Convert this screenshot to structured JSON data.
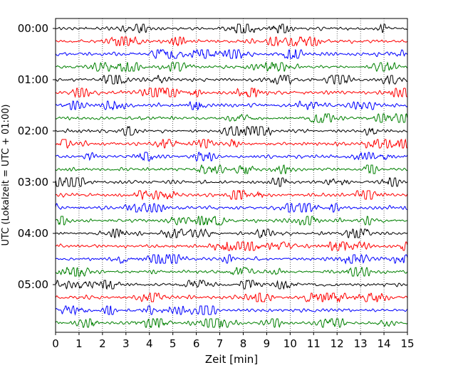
{
  "chart_data": {
    "type": "line",
    "title": "",
    "xlabel": "Zeit  [min]",
    "ylabel": "UTC (Lokalzeit = UTC + 01:00)",
    "xlim": [
      0,
      15
    ],
    "x_ticks": [
      "0",
      "1",
      "2",
      "3",
      "4",
      "5",
      "6",
      "7",
      "8",
      "9",
      "10",
      "11",
      "12",
      "13",
      "14",
      "15"
    ],
    "y_tick_labels": [
      "00:00",
      "01:00",
      "02:00",
      "03:00",
      "04:00",
      "05:00"
    ],
    "grid": "vertical-dotted",
    "trace_count": 24,
    "traces_per_hour": 4,
    "trace_colors": [
      "#000000",
      "#ff0000",
      "#0000ff",
      "#008000"
    ],
    "trace_start_labels": [
      "00:00",
      "00:15",
      "00:30",
      "00:45",
      "01:00",
      "01:15",
      "01:30",
      "01:45",
      "02:00",
      "02:15",
      "02:30",
      "02:45",
      "03:00",
      "03:15",
      "03:30",
      "03:45",
      "04:00",
      "04:15",
      "04:30",
      "04:45",
      "05:00",
      "05:15",
      "05:30",
      "05:45"
    ]
  }
}
